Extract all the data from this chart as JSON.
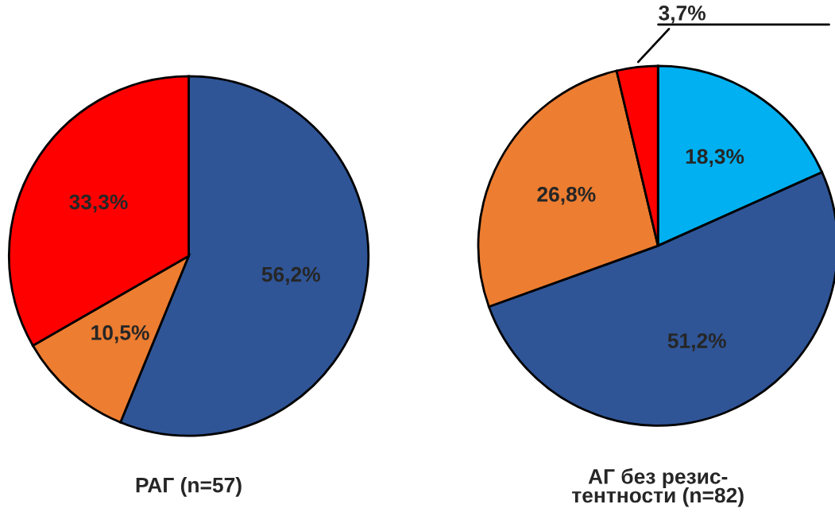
{
  "chart_data": [
    {
      "type": "pie",
      "title": "РАГ (n=57)",
      "categories": [
        null,
        null,
        null
      ],
      "values": [
        56.2,
        10.5,
        33.3
      ],
      "colors": [
        "#2f5597",
        "#ed7d31",
        "#ff0000"
      ],
      "value_labels": [
        "56,2%",
        "10,5%",
        "33,3%"
      ]
    },
    {
      "type": "pie",
      "title": "АГ без резис-\nтентности (n=82)",
      "categories": [
        null,
        null,
        null,
        null
      ],
      "values": [
        18.3,
        51.2,
        26.8,
        3.7
      ],
      "colors": [
        "#00b0f0",
        "#2f5597",
        "#ed7d31",
        "#ff0000"
      ],
      "value_labels": [
        "18,3%",
        "51,2%",
        "26,8%",
        "3,7%"
      ]
    }
  ]
}
